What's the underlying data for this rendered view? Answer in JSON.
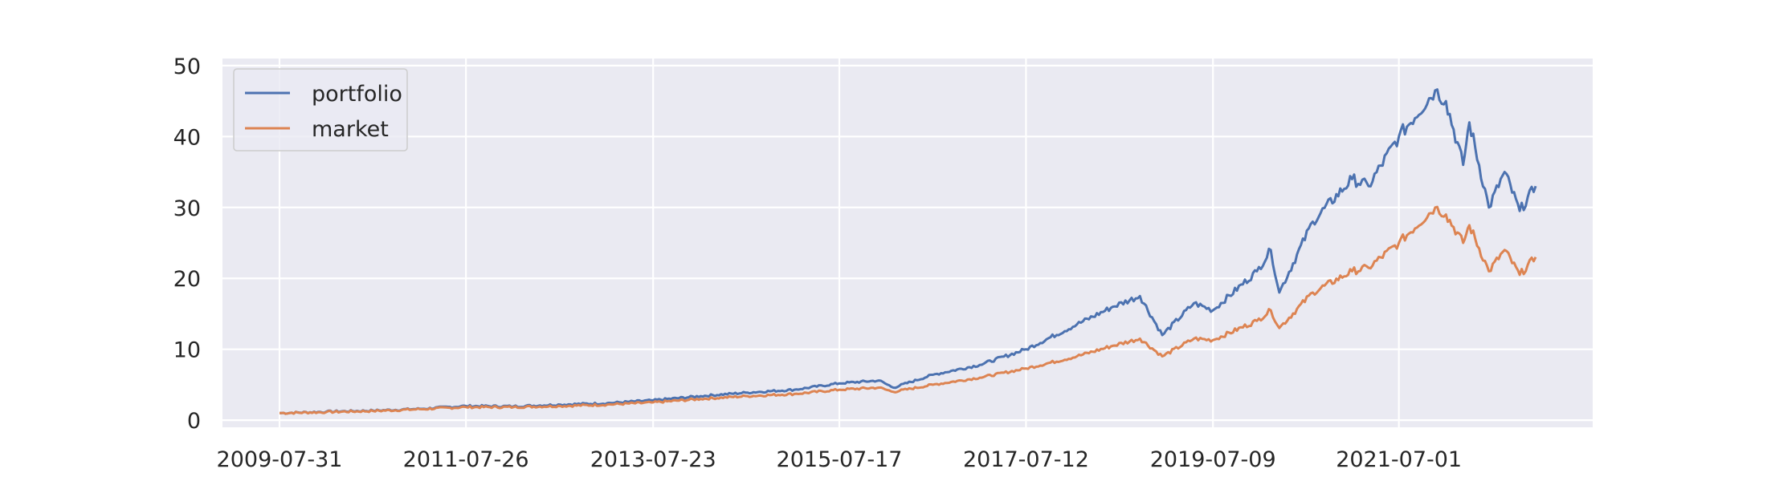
{
  "chart_data": {
    "type": "line",
    "title": "",
    "xlabel": "",
    "ylabel": "",
    "x_range": [
      "2009-07-31",
      "2022-12-15"
    ],
    "ylim": [
      -1,
      51
    ],
    "y_ticks": [
      0,
      10,
      20,
      30,
      40,
      50
    ],
    "y_tick_labels": [
      "0",
      "10",
      "20",
      "30",
      "40",
      "50"
    ],
    "x_ticks": [
      "2009-07-31",
      "2011-07-26",
      "2013-07-23",
      "2015-07-17",
      "2017-07-12",
      "2019-07-09",
      "2021-07-01"
    ],
    "x_tick_labels": [
      "2009-07-31",
      "2011-07-26",
      "2013-07-23",
      "2015-07-17",
      "2017-07-12",
      "2019-07-09",
      "2021-07-01"
    ],
    "grid": true,
    "legend_position": "top-left",
    "background_color": "#eaeaf2",
    "grid_color": "#ffffff",
    "series": [
      {
        "name": "portfolio",
        "color": "#4c72b0",
        "points": [
          [
            "2009-07-31",
            1.0
          ],
          [
            "2010-01-29",
            1.2
          ],
          [
            "2010-07-30",
            1.35
          ],
          [
            "2011-01-28",
            1.6
          ],
          [
            "2011-07-26",
            2.0
          ],
          [
            "2012-01-27",
            1.95
          ],
          [
            "2012-07-27",
            2.2
          ],
          [
            "2013-01-25",
            2.4
          ],
          [
            "2013-07-23",
            2.8
          ],
          [
            "2014-01-24",
            3.4
          ],
          [
            "2014-07-25",
            3.9
          ],
          [
            "2015-01-23",
            4.3
          ],
          [
            "2015-07-17",
            5.2
          ],
          [
            "2015-12-18",
            5.6
          ],
          [
            "2016-02-12",
            4.6
          ],
          [
            "2016-07-15",
            6.4
          ],
          [
            "2017-01-13",
            7.8
          ],
          [
            "2017-07-12",
            10.0
          ],
          [
            "2018-01-26",
            13.5
          ],
          [
            "2018-06-15",
            16.0
          ],
          [
            "2018-09-28",
            17.5
          ],
          [
            "2018-12-24",
            12.0
          ],
          [
            "2019-04-26",
            16.5
          ],
          [
            "2019-07-09",
            15.5
          ],
          [
            "2019-12-27",
            21.0
          ],
          [
            "2020-02-19",
            24.0
          ],
          [
            "2020-03-23",
            18.0
          ],
          [
            "2020-07-31",
            28.0
          ],
          [
            "2020-12-31",
            34.0
          ],
          [
            "2021-03-05",
            33.0
          ],
          [
            "2021-07-01",
            40.0
          ],
          [
            "2021-11-19",
            46.5
          ],
          [
            "2021-12-31",
            45.0
          ],
          [
            "2022-03-08",
            36.0
          ],
          [
            "2022-04-01",
            42.0
          ],
          [
            "2022-06-16",
            30.0
          ],
          [
            "2022-08-16",
            35.0
          ],
          [
            "2022-10-14",
            29.5
          ],
          [
            "2022-12-15",
            33.0
          ]
        ]
      },
      {
        "name": "market",
        "color": "#dd8452",
        "points": [
          [
            "2009-07-31",
            1.0
          ],
          [
            "2010-01-29",
            1.15
          ],
          [
            "2010-07-30",
            1.3
          ],
          [
            "2011-01-28",
            1.55
          ],
          [
            "2011-07-26",
            1.85
          ],
          [
            "2012-01-27",
            1.85
          ],
          [
            "2012-07-27",
            2.0
          ],
          [
            "2013-01-25",
            2.2
          ],
          [
            "2013-07-23",
            2.5
          ],
          [
            "2014-01-24",
            3.0
          ],
          [
            "2014-07-25",
            3.4
          ],
          [
            "2015-01-23",
            3.7
          ],
          [
            "2015-07-17",
            4.3
          ],
          [
            "2015-12-18",
            4.6
          ],
          [
            "2016-02-12",
            4.0
          ],
          [
            "2016-07-15",
            5.0
          ],
          [
            "2017-01-13",
            6.0
          ],
          [
            "2017-07-12",
            7.3
          ],
          [
            "2018-01-26",
            9.0
          ],
          [
            "2018-06-15",
            10.5
          ],
          [
            "2018-09-28",
            11.5
          ],
          [
            "2018-12-24",
            9.0
          ],
          [
            "2019-04-26",
            11.5
          ],
          [
            "2019-07-09",
            11.3
          ],
          [
            "2019-12-27",
            14.0
          ],
          [
            "2020-02-19",
            15.5
          ],
          [
            "2020-03-23",
            13.0
          ],
          [
            "2020-07-31",
            18.0
          ],
          [
            "2020-12-31",
            21.0
          ],
          [
            "2021-03-05",
            21.5
          ],
          [
            "2021-07-01",
            25.0
          ],
          [
            "2021-11-19",
            30.0
          ],
          [
            "2021-12-31",
            29.0
          ],
          [
            "2022-03-08",
            25.0
          ],
          [
            "2022-04-01",
            27.5
          ],
          [
            "2022-06-16",
            21.0
          ],
          [
            "2022-08-16",
            24.0
          ],
          [
            "2022-10-14",
            20.5
          ],
          [
            "2022-12-15",
            23.0
          ]
        ]
      }
    ]
  }
}
